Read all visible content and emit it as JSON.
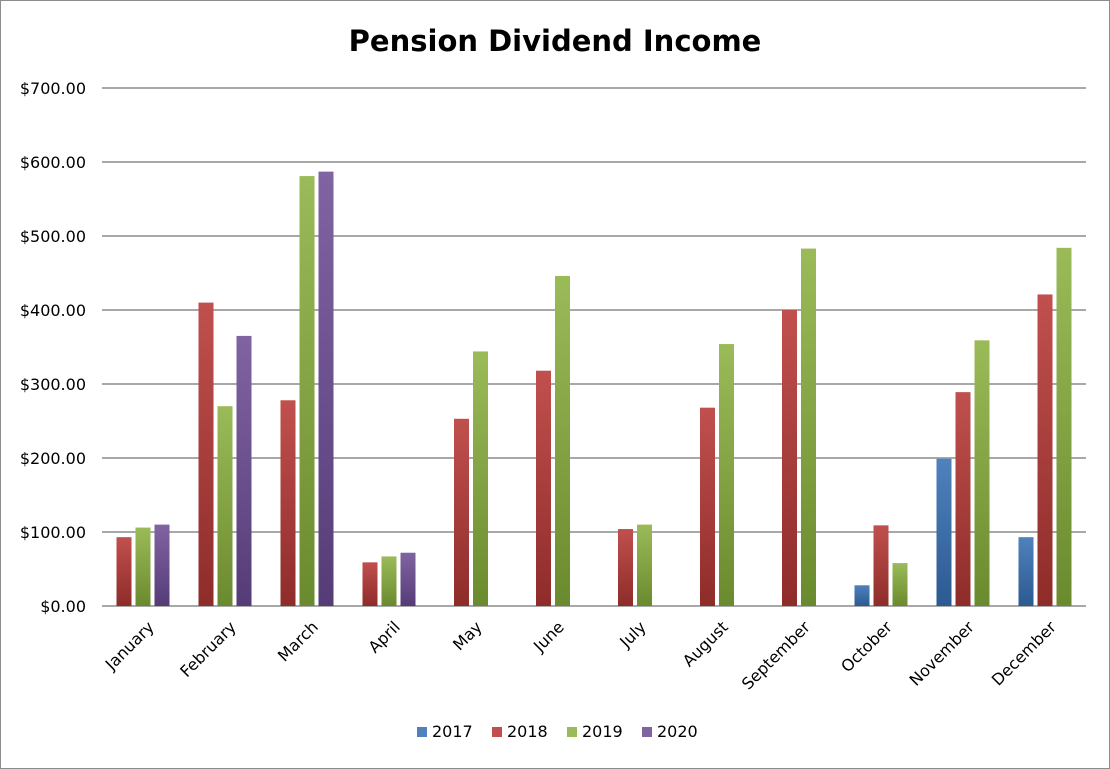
{
  "chart_data": {
    "type": "bar",
    "title": "Pension Dividend Income",
    "xlabel": "",
    "ylabel": "",
    "ylim": [
      0,
      700
    ],
    "yticks": [
      0,
      100,
      200,
      300,
      400,
      500,
      600,
      700
    ],
    "ytick_labels": [
      "$0.00",
      "$100.00",
      "$200.00",
      "$300.00",
      "$400.00",
      "$500.00",
      "$600.00",
      "$700.00"
    ],
    "grid": true,
    "legend_position": "bottom",
    "categories": [
      "January",
      "February",
      "March",
      "April",
      "May",
      "June",
      "July",
      "August",
      "September",
      "October",
      "November",
      "December"
    ],
    "series": [
      {
        "name": "2017",
        "color": "#4f81bd",
        "color_dark": "#2c5a91",
        "values": [
          null,
          null,
          null,
          null,
          null,
          null,
          null,
          null,
          null,
          28,
          199,
          93
        ]
      },
      {
        "name": "2018",
        "color": "#c0504d",
        "color_dark": "#8e2c2a",
        "values": [
          93,
          410,
          278,
          59,
          253,
          318,
          104,
          268,
          400,
          109,
          289,
          421
        ]
      },
      {
        "name": "2019",
        "color": "#9bbb59",
        "color_dark": "#6a8a2e",
        "values": [
          106,
          270,
          581,
          67,
          344,
          446,
          110,
          354,
          483,
          58,
          359,
          484
        ]
      },
      {
        "name": "2020",
        "color": "#8064a2",
        "color_dark": "#553c77",
        "values": [
          110,
          365,
          587,
          72,
          null,
          null,
          null,
          null,
          null,
          null,
          null,
          null
        ]
      }
    ]
  }
}
